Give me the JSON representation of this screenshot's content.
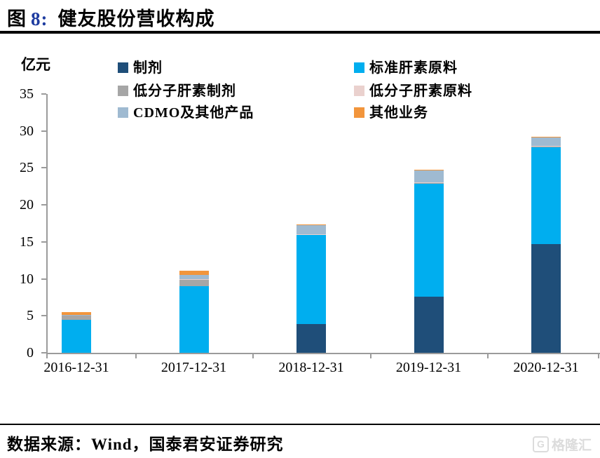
{
  "header": {
    "title_prefix": "图",
    "title_number": "8:",
    "title_text": "健友股份营收构成",
    "title_number_color": "#1e3ca0"
  },
  "chart_data": {
    "type": "bar",
    "stacked": true,
    "title": "健友股份营收构成",
    "unit_label": "亿元",
    "categories": [
      "2016-12-31",
      "2017-12-31",
      "2018-12-31",
      "2019-12-31",
      "2020-12-31"
    ],
    "series": [
      {
        "name": "制剂",
        "color": "#1F4E79",
        "values": [
          0,
          0,
          3.9,
          7.6,
          14.7
        ]
      },
      {
        "name": "标准肝素原料",
        "color": "#00AEEF",
        "values": [
          4.5,
          9.0,
          12.0,
          15.3,
          13.1
        ]
      },
      {
        "name": "低分子肝素制剂",
        "color": "#A6A6A6",
        "values": [
          0.6,
          0.95,
          0.1,
          0.05,
          0.05
        ]
      },
      {
        "name": "低分子肝素原料",
        "color": "#EAD1CE",
        "values": [
          0,
          0.05,
          0.05,
          0.08,
          0.1
        ]
      },
      {
        "name": "CDMO及其他产品",
        "color": "#9FBAD1",
        "values": [
          0.05,
          0.55,
          1.2,
          1.6,
          1.2
        ]
      },
      {
        "name": "其他业务",
        "color": "#F2953C",
        "values": [
          0.35,
          0.55,
          0.1,
          0.1,
          0.1
        ]
      }
    ],
    "totals": [
      5.5,
      11.1,
      17.35,
      24.73,
      29.25
    ],
    "ylim": [
      0,
      35
    ],
    "yticks": [
      0,
      5,
      10,
      15,
      20,
      25,
      30,
      35
    ],
    "legend_position": "top",
    "axis_color": "#9b9b9b"
  },
  "footer": {
    "source": "数据来源：Wind，国泰君安证券研究"
  },
  "watermark": {
    "icon": "G",
    "text": "格隆汇"
  }
}
